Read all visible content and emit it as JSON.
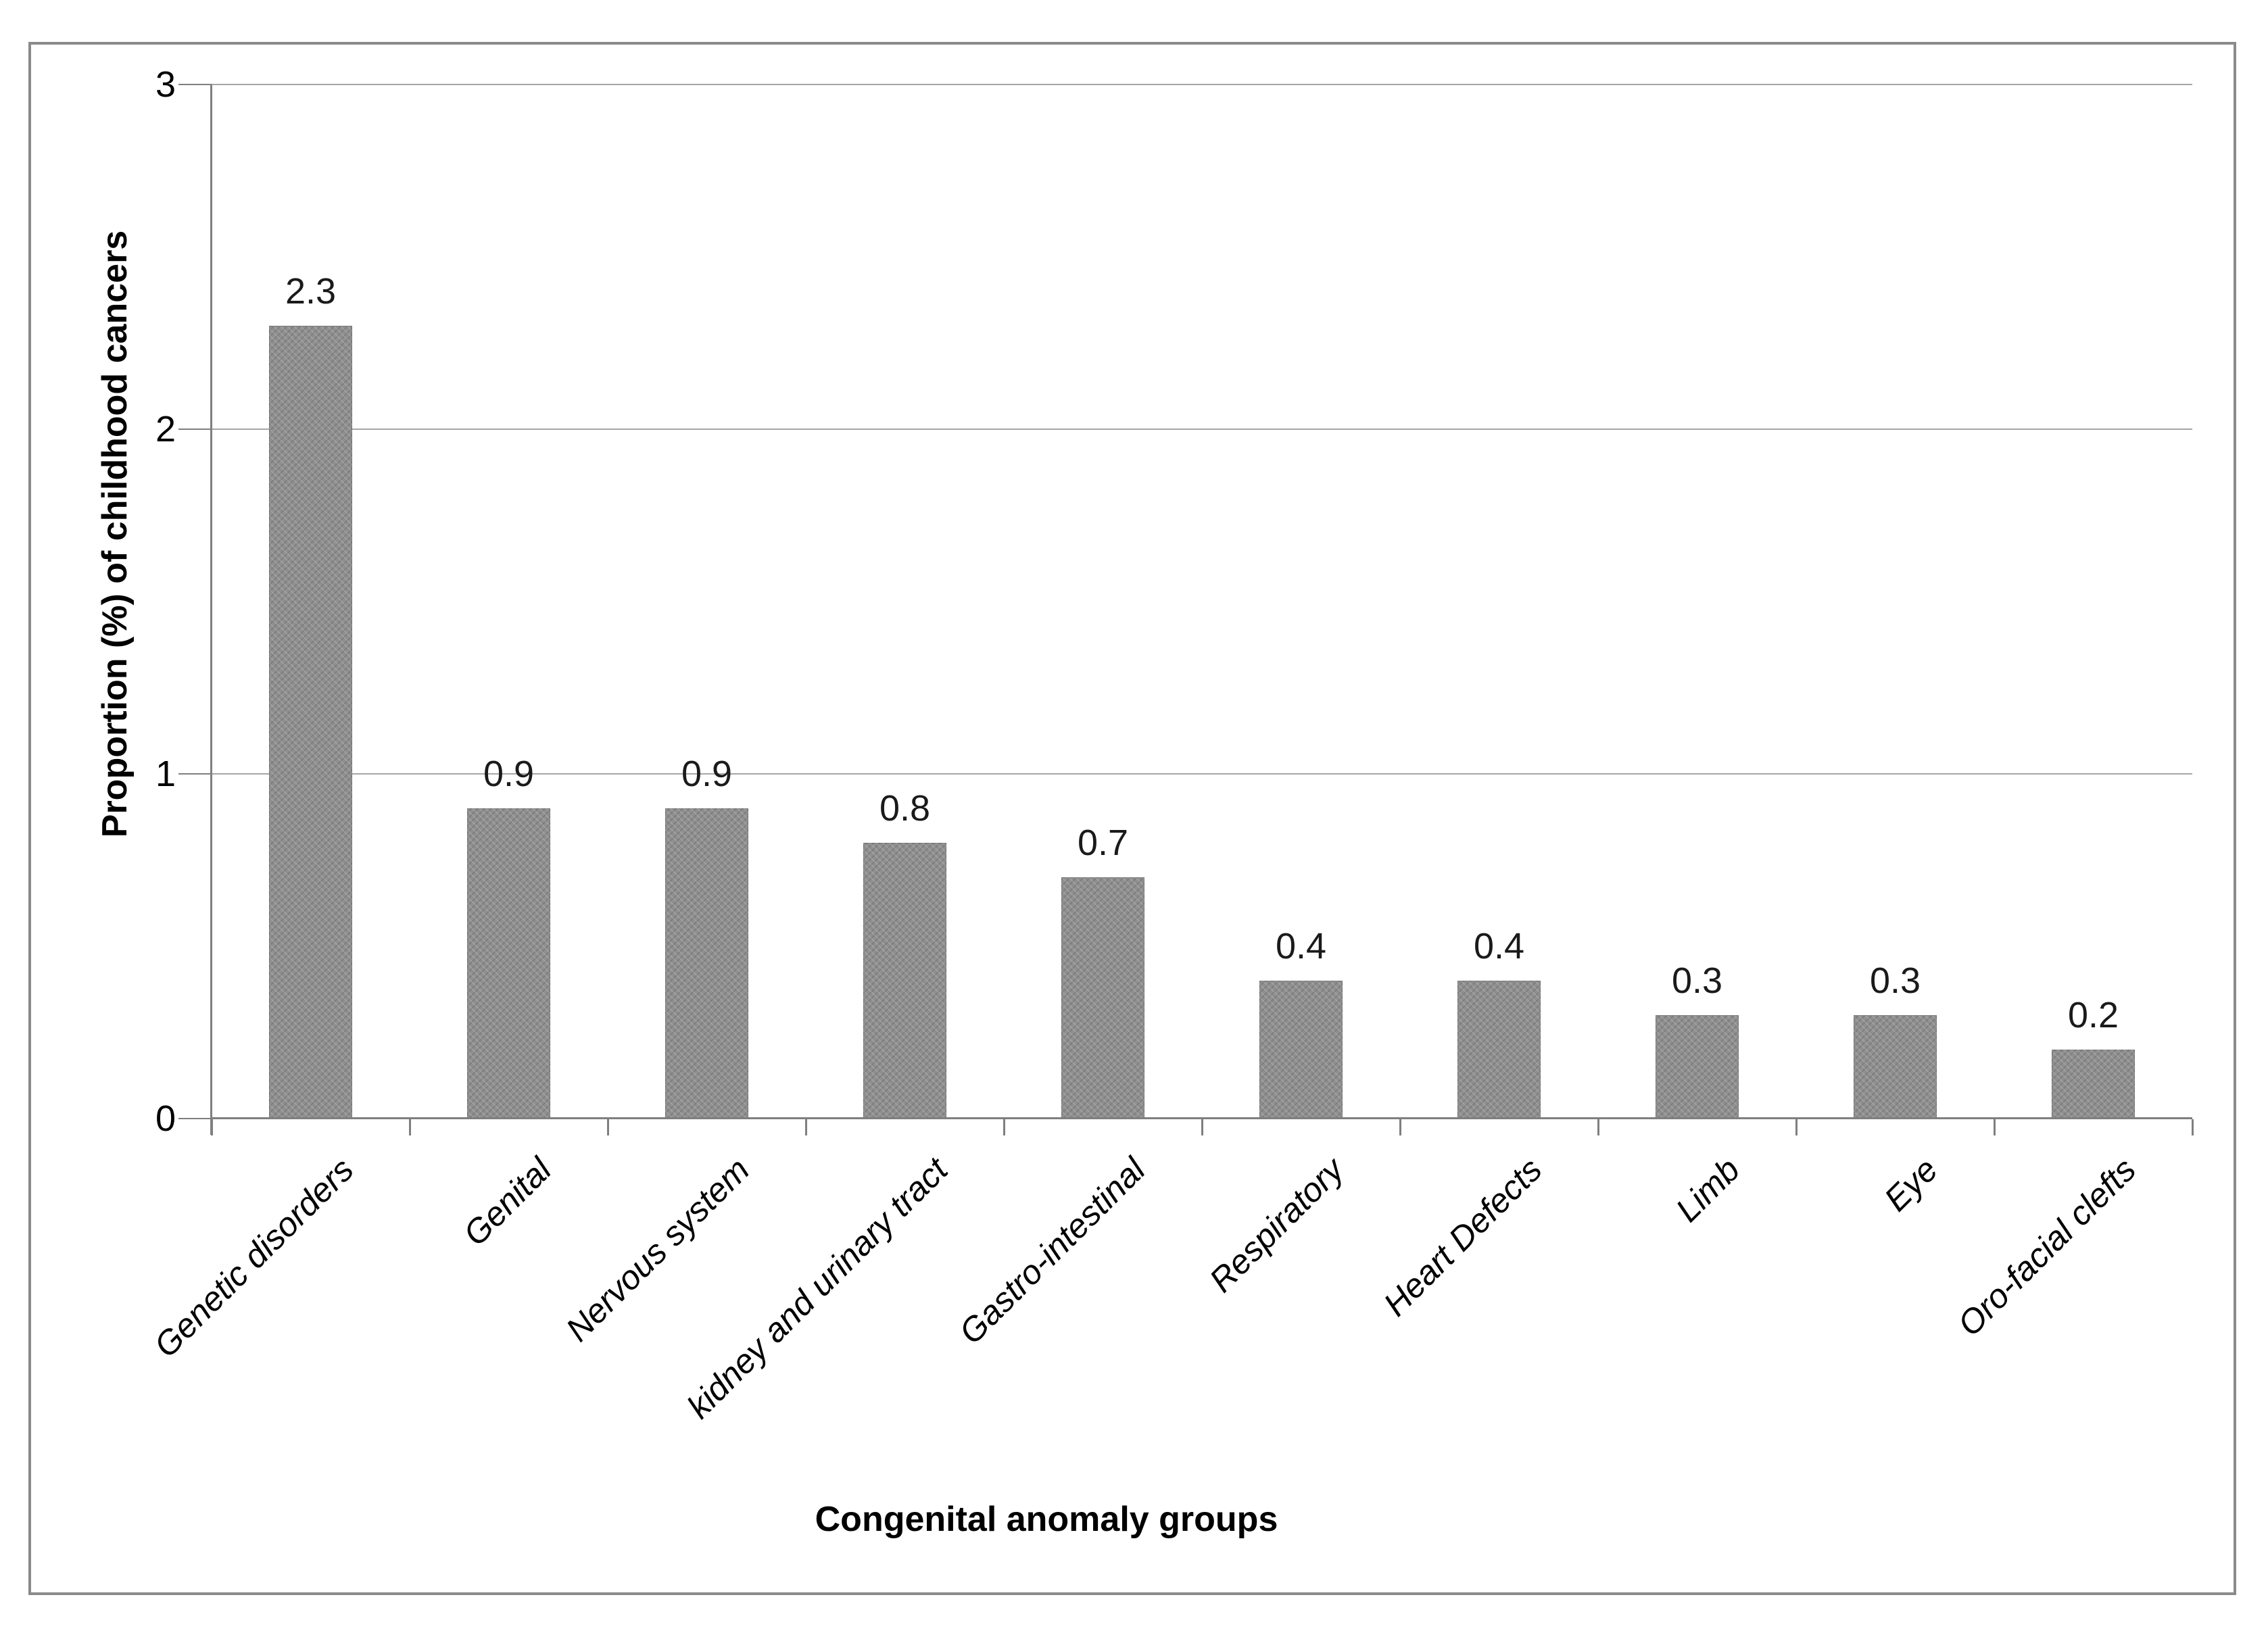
{
  "chart_data": {
    "type": "bar",
    "title": "",
    "xlabel": "Congenital anomaly groups",
    "ylabel": "Proportion (%) of childhood cancers",
    "categories": [
      "Genetic disorders",
      "Genital",
      "Nervous system",
      "kidney and urinary tract",
      "Gastro-intestinal",
      "Respiratory",
      "Heart Defects",
      "Limb",
      "Eye",
      "Oro-facial clefts"
    ],
    "values": [
      2.3,
      0.9,
      0.9,
      0.8,
      0.7,
      0.4,
      0.4,
      0.3,
      0.3,
      0.2
    ],
    "data_labels": [
      "2.3",
      "0.9",
      "0.9",
      "0.8",
      "0.7",
      "0.4",
      "0.4",
      "0.3",
      "0.3",
      "0.2"
    ],
    "ylim": [
      0,
      3
    ],
    "yticks": [
      "0",
      "1",
      "2",
      "3"
    ],
    "grid": true,
    "legend": false,
    "bar_color": "#8f8f8f",
    "gridline_color": "#a6a6a6",
    "axis_color": "#7f7f7f",
    "label_color": "#1a1a1a"
  }
}
